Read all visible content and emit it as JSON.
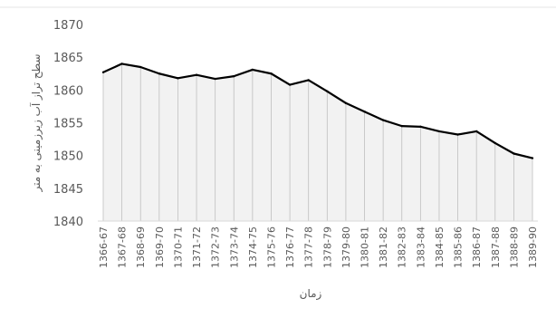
{
  "chart_data": {
    "type": "area",
    "title": "",
    "xlabel": "زمان",
    "ylabel": "سطح تراز آب زیرزمینی به متر",
    "ylim": [
      1840,
      1870
    ],
    "yticks": [
      1840,
      1845,
      1850,
      1855,
      1860,
      1865,
      1870
    ],
    "grid": false,
    "legend": "none",
    "colors": {
      "line": "#000000",
      "area_fill": "#f2f2f2",
      "drop_lines": "#bfbfbf",
      "axis": "#d9d9d9",
      "text": "#595959"
    },
    "categories": [
      "1366-67",
      "1367-68",
      "1368-69",
      "1369-70",
      "1370-71",
      "1371-72",
      "1372-73",
      "1373-74",
      "1374-75",
      "1375-76",
      "1376-77",
      "1377-78",
      "1378-79",
      "1379-80",
      "1380-81",
      "1381-82",
      "1382-83",
      "1383-84",
      "1384-85",
      "1385-86",
      "1386-87",
      "1387-88",
      "1388-89",
      "1389-90"
    ],
    "series": [
      {
        "values": [
          1862.7,
          1864.0,
          1863.5,
          1862.5,
          1861.8,
          1862.3,
          1861.7,
          1862.1,
          1863.1,
          1862.5,
          1860.8,
          1861.5,
          1859.8,
          1858.0,
          1856.7,
          1855.4,
          1854.5,
          1854.4,
          1853.7,
          1853.2,
          1853.7,
          1851.9,
          1850.3,
          1849.6
        ]
      }
    ]
  }
}
